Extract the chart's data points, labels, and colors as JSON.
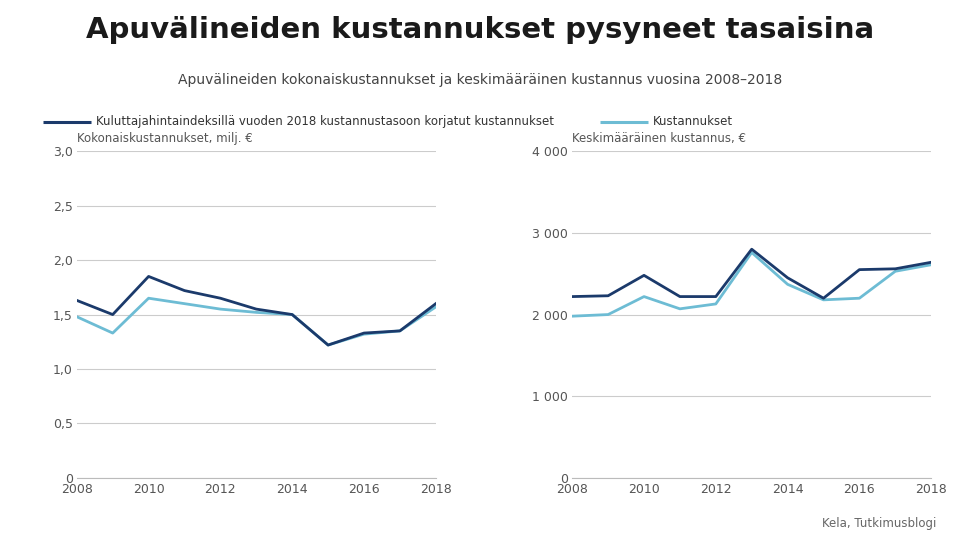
{
  "title": "Apuvälineiden kustannukset pysyneet tasaisina",
  "subtitle": "Apuvälineiden kokonaiskustannukset ja keskimääräinen kustannus vuosina 2008–2018",
  "legend_dark": "Kuluttajahintaindeksillä vuoden 2018 kustannustasoon korjatut kustannukset",
  "legend_light": "Kustannukset",
  "source": "Kela, Tutkimusblogi",
  "color_dark": "#1b3a6b",
  "color_light": "#6dbcd4",
  "bg_color": "#ffffff",
  "years": [
    2008,
    2009,
    2010,
    2011,
    2012,
    2013,
    2014,
    2015,
    2016,
    2017,
    2018
  ],
  "left_ylabel": "Kokonaiskustannukset, milj. €",
  "right_ylabel": "Keskimääräinen kustannus, €",
  "left_dark": [
    1.63,
    1.5,
    1.85,
    1.72,
    1.65,
    1.55,
    1.5,
    1.22,
    1.33,
    1.35,
    1.6
  ],
  "left_light": [
    1.48,
    1.33,
    1.65,
    1.6,
    1.55,
    1.52,
    1.5,
    1.22,
    1.32,
    1.35,
    1.57
  ],
  "right_dark": [
    2220,
    2230,
    2480,
    2220,
    2220,
    2800,
    2450,
    2200,
    2550,
    2560,
    2640
  ],
  "right_light": [
    1980,
    2000,
    2220,
    2070,
    2130,
    2760,
    2370,
    2180,
    2200,
    2530,
    2610
  ],
  "left_ylim": [
    0,
    3.0
  ],
  "left_yticks": [
    0,
    0.5,
    1.0,
    1.5,
    2.0,
    2.5,
    3.0
  ],
  "right_ylim": [
    0,
    4000
  ],
  "right_yticks": [
    0,
    1000,
    2000,
    3000,
    4000
  ],
  "xticks": [
    2008,
    2010,
    2012,
    2014,
    2016,
    2018
  ]
}
